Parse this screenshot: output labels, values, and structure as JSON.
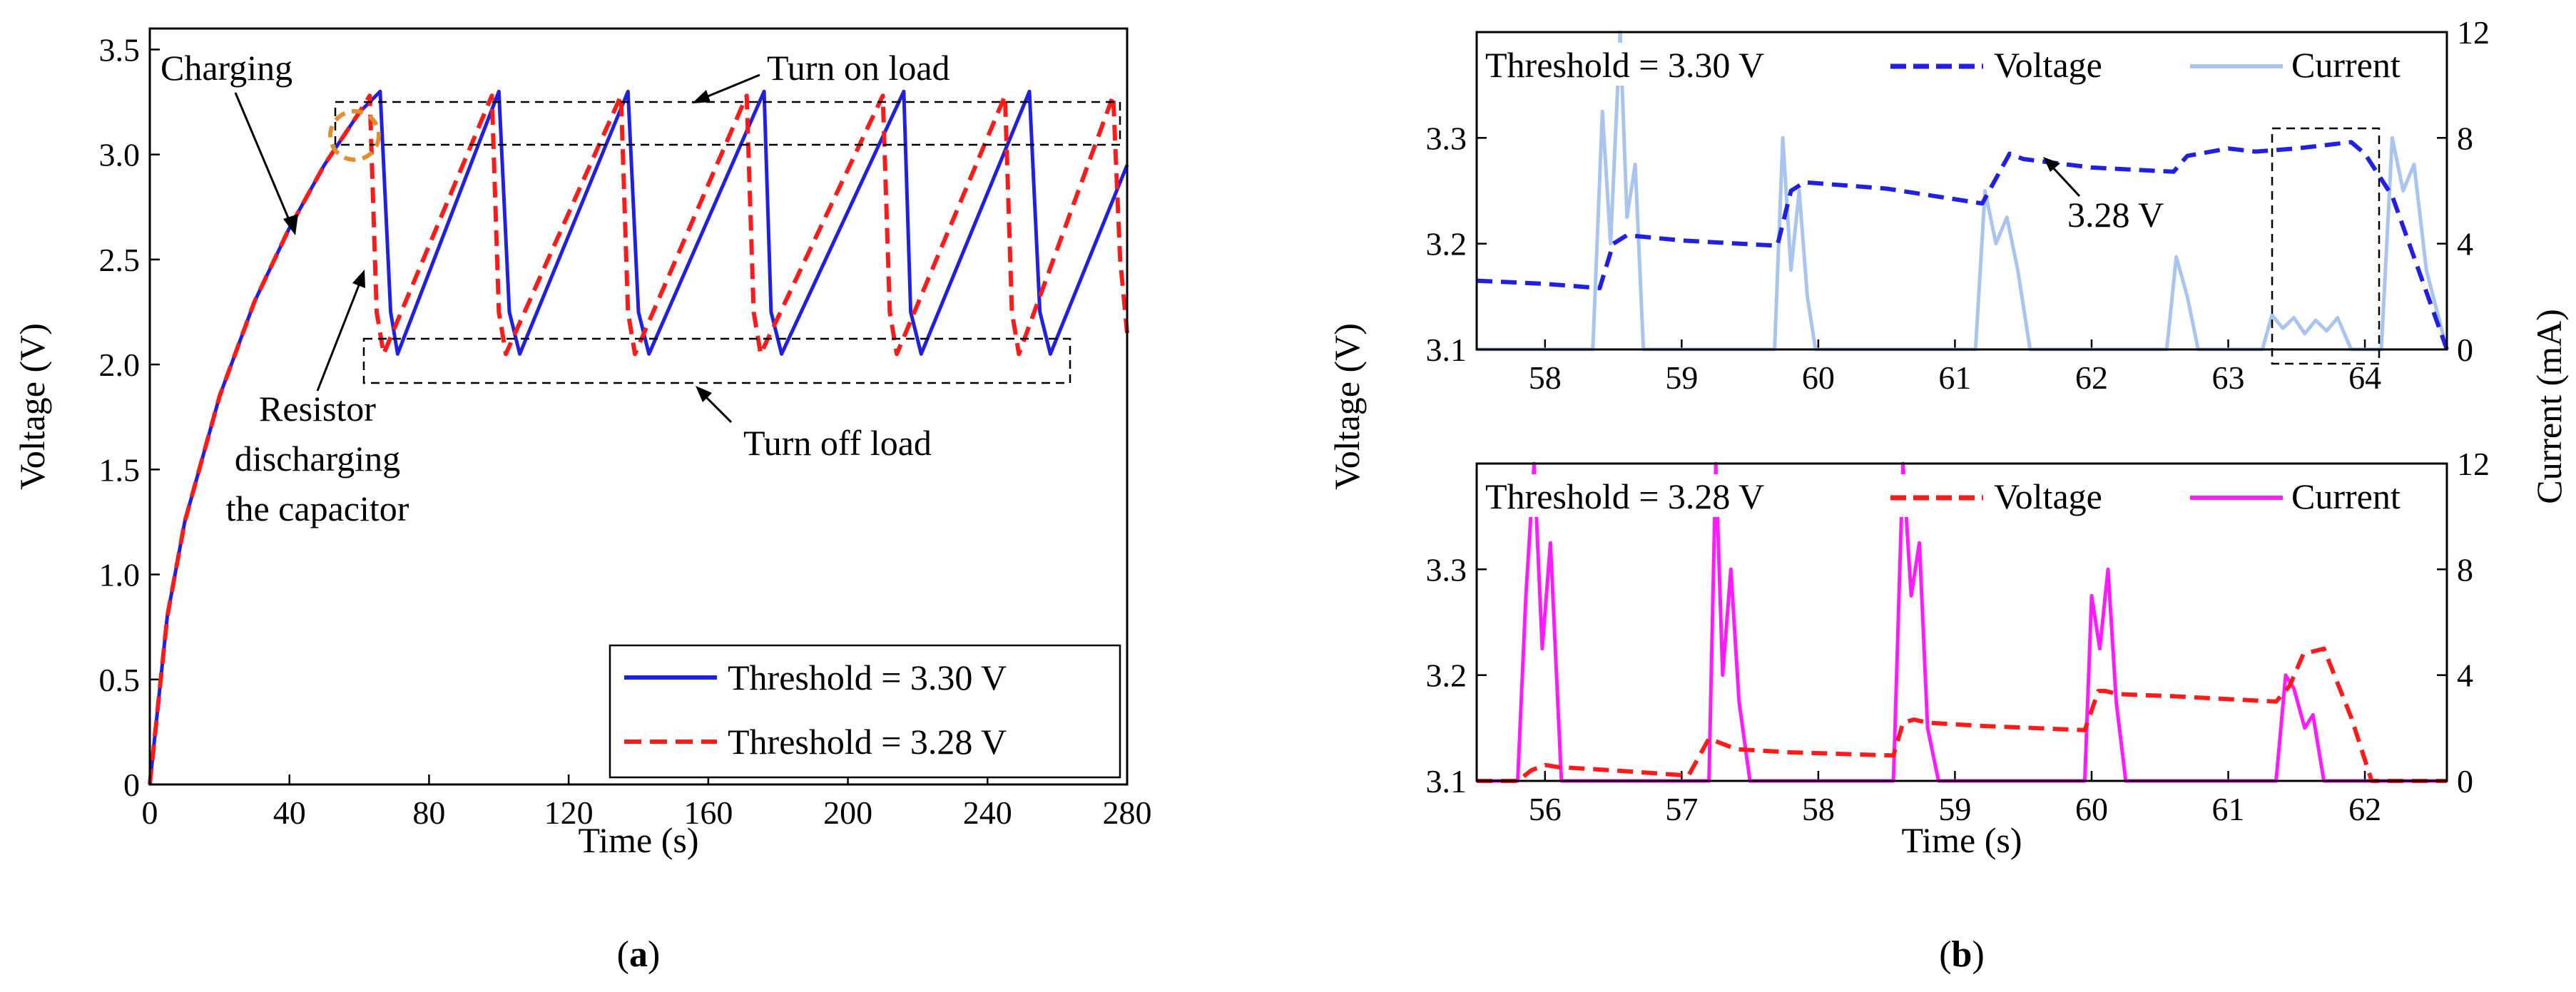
{
  "panel_a": {
    "label": "(a)",
    "label_prefix": "(",
    "label_letter": "a",
    "label_suffix": ")"
  },
  "panel_b": {
    "label": "(b)",
    "label_prefix": "(",
    "label_letter": "b",
    "label_suffix": ")"
  },
  "annotations": {
    "charging": "Charging",
    "turn_on_load": "Turn on load",
    "turn_off_load": "Turn off load",
    "resistor_line1": "Resistor",
    "resistor_line2": "discharging",
    "resistor_line3": "the capacitor",
    "peak_label": "3.28 V"
  },
  "colors": {
    "blue": "#1f1fe6",
    "red": "#ff1a1a",
    "light_blue": "#a9c4ee",
    "magenta": "#ff1aff",
    "orange": "#e0902a"
  },
  "chart_data": [
    {
      "id": "a",
      "type": "line",
      "title": "",
      "xlabel": "Time (s)",
      "ylabel": "Voltage (V)",
      "xlim": [
        0,
        280
      ],
      "ylim": [
        0,
        3.6
      ],
      "xticks": [
        0,
        40,
        80,
        120,
        160,
        200,
        240,
        280
      ],
      "xtick_labels": [
        "0",
        "40",
        "80",
        "120",
        "160",
        "200",
        "240",
        "280"
      ],
      "yticks": [
        0,
        0.5,
        1.0,
        1.5,
        2.0,
        2.5,
        3.0,
        3.5
      ],
      "ytick_labels": [
        "0",
        "0.5",
        "1.0",
        "1.5",
        "2.0",
        "2.5",
        "3.0",
        "3.5"
      ],
      "legend_position": "bottom-right",
      "series": [
        {
          "name": "Threshold = 3.30 V",
          "color": "#1f1fe6",
          "style": "solid",
          "x": [
            0,
            5,
            10,
            20,
            30,
            40,
            50,
            60,
            66,
            69,
            71,
            100,
            103,
            106,
            137,
            140,
            143,
            176,
            178,
            181,
            216,
            218,
            221,
            252,
            255,
            258,
            280
          ],
          "y": [
            0,
            0.8,
            1.25,
            1.85,
            2.3,
            2.65,
            2.95,
            3.2,
            3.3,
            2.25,
            2.05,
            3.3,
            2.25,
            2.05,
            3.3,
            2.25,
            2.05,
            3.3,
            2.25,
            2.05,
            3.3,
            2.25,
            2.05,
            3.3,
            2.25,
            2.05,
            2.95
          ]
        },
        {
          "name": "Threshold = 3.28 V",
          "color": "#ff1a1a",
          "style": "dashed",
          "x": [
            0,
            5,
            10,
            20,
            30,
            40,
            50,
            60,
            63,
            65,
            67,
            98,
            100,
            102,
            135,
            137,
            139,
            171,
            173,
            175,
            210,
            212,
            214,
            245,
            247,
            249,
            276,
            278,
            280
          ],
          "y": [
            0,
            0.8,
            1.25,
            1.85,
            2.3,
            2.65,
            2.95,
            3.2,
            3.28,
            2.25,
            2.05,
            3.28,
            2.25,
            2.05,
            3.28,
            2.25,
            2.05,
            3.28,
            2.25,
            2.05,
            3.28,
            2.25,
            2.05,
            3.28,
            2.25,
            2.05,
            3.28,
            2.5,
            2.15
          ]
        }
      ]
    },
    {
      "id": "b_top",
      "type": "line",
      "title": "",
      "legend_title": "Threshold = 3.30 V",
      "xlabel": "",
      "ylabel": "Voltage (V)",
      "ylabel_right": "Current (mA)",
      "xlim": [
        57.5,
        64.6
      ],
      "ylim": [
        3.1,
        3.4
      ],
      "ylim_right": [
        0,
        12
      ],
      "xticks": [
        58,
        59,
        60,
        61,
        62,
        63,
        64
      ],
      "xtick_labels": [
        "58",
        "59",
        "60",
        "61",
        "62",
        "63",
        "64"
      ],
      "yticks": [
        3.1,
        3.2,
        3.3
      ],
      "ytick_labels": [
        "3.1",
        "3.2",
        "3.3"
      ],
      "yticks_right": [
        0,
        4,
        8,
        12
      ],
      "ytick_labels_right": [
        "0",
        "4",
        "8",
        "12"
      ],
      "legend_position": "top",
      "series": [
        {
          "name": "Voltage",
          "axis": "left",
          "color": "#1f1fe6",
          "style": "dashed",
          "x": [
            57.5,
            58.0,
            58.4,
            58.5,
            58.6,
            59.0,
            59.7,
            59.8,
            59.9,
            60.5,
            61.2,
            61.4,
            61.5,
            62.0,
            62.6,
            62.7,
            63.0,
            63.2,
            63.5,
            63.9,
            64.0,
            64.2,
            64.6
          ],
          "y": [
            3.165,
            3.162,
            3.158,
            3.2,
            3.208,
            3.203,
            3.198,
            3.25,
            3.258,
            3.252,
            3.238,
            3.285,
            3.28,
            3.272,
            3.268,
            3.283,
            3.29,
            3.287,
            3.29,
            3.296,
            3.285,
            3.245,
            3.1
          ]
        },
        {
          "name": "Current",
          "axis": "right",
          "color": "#a9c4ee",
          "style": "solid",
          "x": [
            57.5,
            58.35,
            58.42,
            58.48,
            58.55,
            58.6,
            58.66,
            58.72,
            59.68,
            59.74,
            59.8,
            59.86,
            59.92,
            59.98,
            61.15,
            61.22,
            61.3,
            61.38,
            61.46,
            61.55,
            62.55,
            62.62,
            62.7,
            62.78,
            63.25,
            63.32,
            63.4,
            63.48,
            63.56,
            63.64,
            63.72,
            63.8,
            63.9,
            64.12,
            64.2,
            64.28,
            64.36,
            64.45,
            64.6
          ],
          "y": [
            0,
            0,
            9,
            4,
            12,
            5,
            7,
            0,
            0,
            8,
            3,
            6,
            2,
            0,
            0,
            6,
            4,
            5,
            3,
            0,
            0,
            3.5,
            2,
            0,
            0,
            1.3,
            0.8,
            1.2,
            0.6,
            1.1,
            0.7,
            1.2,
            0,
            0,
            8,
            6,
            7,
            3,
            0
          ]
        }
      ],
      "inset_box_x": [
        63.25,
        63.95
      ]
    },
    {
      "id": "b_bottom",
      "type": "line",
      "title": "",
      "legend_title": "Threshold = 3.28 V",
      "xlabel": "Time (s)",
      "ylabel": "",
      "ylabel_right": "",
      "xlim": [
        55.5,
        62.6
      ],
      "ylim": [
        3.1,
        3.4
      ],
      "ylim_right": [
        0,
        12
      ],
      "xticks": [
        56,
        57,
        58,
        59,
        60,
        61,
        62
      ],
      "xtick_labels": [
        "56",
        "57",
        "58",
        "59",
        "60",
        "61",
        "62"
      ],
      "yticks": [
        3.1,
        3.2,
        3.3
      ],
      "ytick_labels": [
        "3.1",
        "3.2",
        "3.3"
      ],
      "yticks_right": [
        0,
        4,
        8,
        12
      ],
      "ytick_labels_right": [
        "0",
        "4",
        "8",
        "12"
      ],
      "legend_position": "top",
      "series": [
        {
          "name": "Voltage",
          "axis": "left",
          "color": "#ff1a1a",
          "style": "dashed",
          "x": [
            55.5,
            55.8,
            55.9,
            56.0,
            56.1,
            56.5,
            57.05,
            57.2,
            57.3,
            57.4,
            57.8,
            58.55,
            58.62,
            58.7,
            58.8,
            59.2,
            59.95,
            60.05,
            60.1,
            60.2,
            60.6,
            61.35,
            61.45,
            61.55,
            61.7,
            61.9,
            62.05,
            62.6
          ],
          "y": [
            3.1,
            3.1,
            3.11,
            3.115,
            3.113,
            3.11,
            3.105,
            3.14,
            3.135,
            3.13,
            3.127,
            3.124,
            3.155,
            3.158,
            3.155,
            3.152,
            3.148,
            3.185,
            3.185,
            3.182,
            3.18,
            3.175,
            3.19,
            3.22,
            3.225,
            3.16,
            3.1,
            3.1
          ]
        },
        {
          "name": "Current",
          "axis": "right",
          "color": "#ff1aff",
          "style": "solid",
          "x": [
            55.5,
            55.8,
            55.86,
            55.92,
            55.98,
            56.04,
            56.12,
            57.2,
            57.25,
            57.3,
            57.36,
            57.42,
            57.5,
            58.55,
            58.62,
            58.68,
            58.74,
            58.8,
            58.88,
            59.95,
            60.0,
            60.06,
            60.12,
            60.18,
            60.25,
            61.35,
            61.42,
            61.48,
            61.56,
            61.62,
            61.7,
            62.6
          ],
          "y": [
            0,
            0,
            7,
            12,
            5,
            9,
            0,
            0,
            12,
            4,
            8,
            3,
            0,
            0,
            12,
            7,
            9,
            2,
            0,
            0,
            7,
            5,
            8,
            3,
            0,
            0,
            4,
            3.5,
            2,
            2.5,
            0,
            0
          ]
        }
      ]
    }
  ]
}
